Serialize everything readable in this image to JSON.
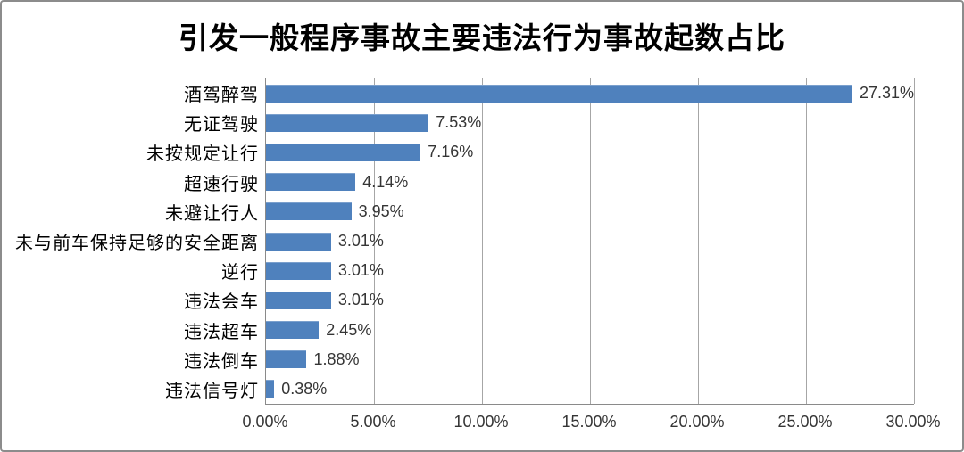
{
  "frame": {
    "background_color": "#FFFFFF",
    "border_color": "#8C8C8C"
  },
  "chart_data": {
    "type": "bar",
    "orientation": "horizontal",
    "title": "引发一般程序事故主要违法行为事故起数占比",
    "categories": [
      "酒驾醉驾",
      "无证驾驶",
      "未按规定让行",
      "超速行驶",
      "未避让行人",
      "未与前车保持足够的安全距离",
      "逆行",
      "违法会车",
      "违法超车",
      "违法倒车",
      "违法信号灯"
    ],
    "values": [
      27.31,
      7.53,
      7.16,
      4.14,
      3.95,
      3.01,
      3.01,
      3.01,
      2.45,
      1.88,
      0.38
    ],
    "data_labels": [
      "27.31%",
      "7.53%",
      "7.16%",
      "4.14%",
      "3.95%",
      "3.01%",
      "3.01%",
      "3.01%",
      "2.45%",
      "1.88%",
      "0.38%"
    ],
    "xlabel": "",
    "ylabel": "",
    "x_axis": {
      "min": 0,
      "max": 30,
      "tick_step": 5,
      "tick_labels": [
        "0.00%",
        "5.00%",
        "10.00%",
        "15.00%",
        "20.00%",
        "25.00%",
        "30.00%"
      ]
    },
    "bar_color": "#4F81BD",
    "gridline_color": "#A6A6A6",
    "axis_line_color": "#8A8A8A",
    "grid": true,
    "legend_position": "none"
  }
}
